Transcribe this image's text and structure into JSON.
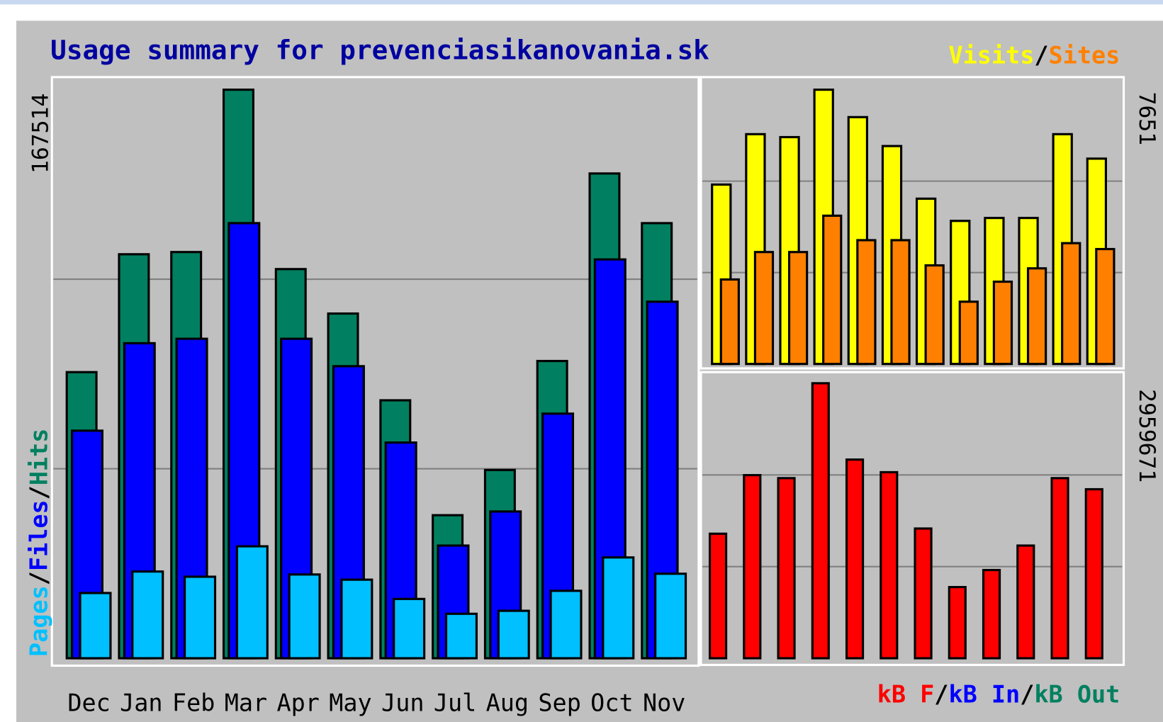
{
  "chart_data": [
    {
      "type": "bar",
      "title": "Usage summary for prevenciasikanovania.sk",
      "categories": [
        "Dec",
        "Jan",
        "Feb",
        "Mar",
        "Apr",
        "May",
        "Jun",
        "Jul",
        "Aug",
        "Sep",
        "Oct",
        "Nov"
      ],
      "series": [
        {
          "name": "Hits",
          "color": "#008060",
          "values": [
            84300,
            119030,
            119680,
            167514,
            114660,
            101560,
            76000,
            42150,
            55470,
            87580,
            142830,
            128200
          ]
        },
        {
          "name": "Files",
          "color": "#0000ff",
          "values": [
            67050,
            92820,
            94130,
            128200,
            94130,
            86050,
            63550,
            33200,
            43240,
            72070,
            117500,
            105050
          ]
        },
        {
          "name": "Pages",
          "color": "#00c0ff",
          "values": [
            19220,
            25550,
            24020,
            32980,
            24680,
            23150,
            17470,
            13100,
            13980,
            19870,
            29700,
            24900
          ]
        }
      ],
      "legend_order": [
        "Pages",
        "Files",
        "Hits"
      ],
      "ylim": [
        0,
        167514
      ],
      "yticks": [
        167514
      ],
      "grid_divisions": 3
    },
    {
      "type": "bar",
      "series": [
        {
          "name": "Visits",
          "color": "#ffff00",
          "values": [
            5004,
            6410,
            6328,
            7651,
            6886,
            6079,
            4611,
            3991,
            4073,
            4073,
            6410,
            5728
          ]
        },
        {
          "name": "Sites",
          "color": "#ff8000",
          "values": [
            2357,
            3122,
            3122,
            4136,
            3453,
            3453,
            2750,
            1737,
            2295,
            2667,
            3370,
            3205
          ]
        }
      ],
      "ylim": [
        0,
        7651
      ],
      "yticks": [
        7651
      ],
      "grid_divisions": 3
    },
    {
      "type": "bar",
      "series": [
        {
          "name": "kB F",
          "color": "#ff0000",
          "values": [
            1340200,
            1970500,
            1938500,
            2959671,
            2138000,
            2002300,
            1396100,
            765900,
            949400,
            1212600,
            1938500,
            1818900
          ]
        },
        {
          "name": "kB In",
          "color": "#0000ff",
          "values": [
            0,
            0,
            0,
            0,
            0,
            0,
            0,
            0,
            0,
            0,
            0,
            0
          ]
        },
        {
          "name": "kB Out",
          "color": "#008060",
          "values": [
            0,
            0,
            0,
            0,
            0,
            0,
            0,
            0,
            0,
            0,
            0,
            0
          ]
        }
      ],
      "ylim": [
        0,
        2959671
      ],
      "yticks": [
        2959671
      ],
      "grid_divisions": 3
    }
  ]
}
